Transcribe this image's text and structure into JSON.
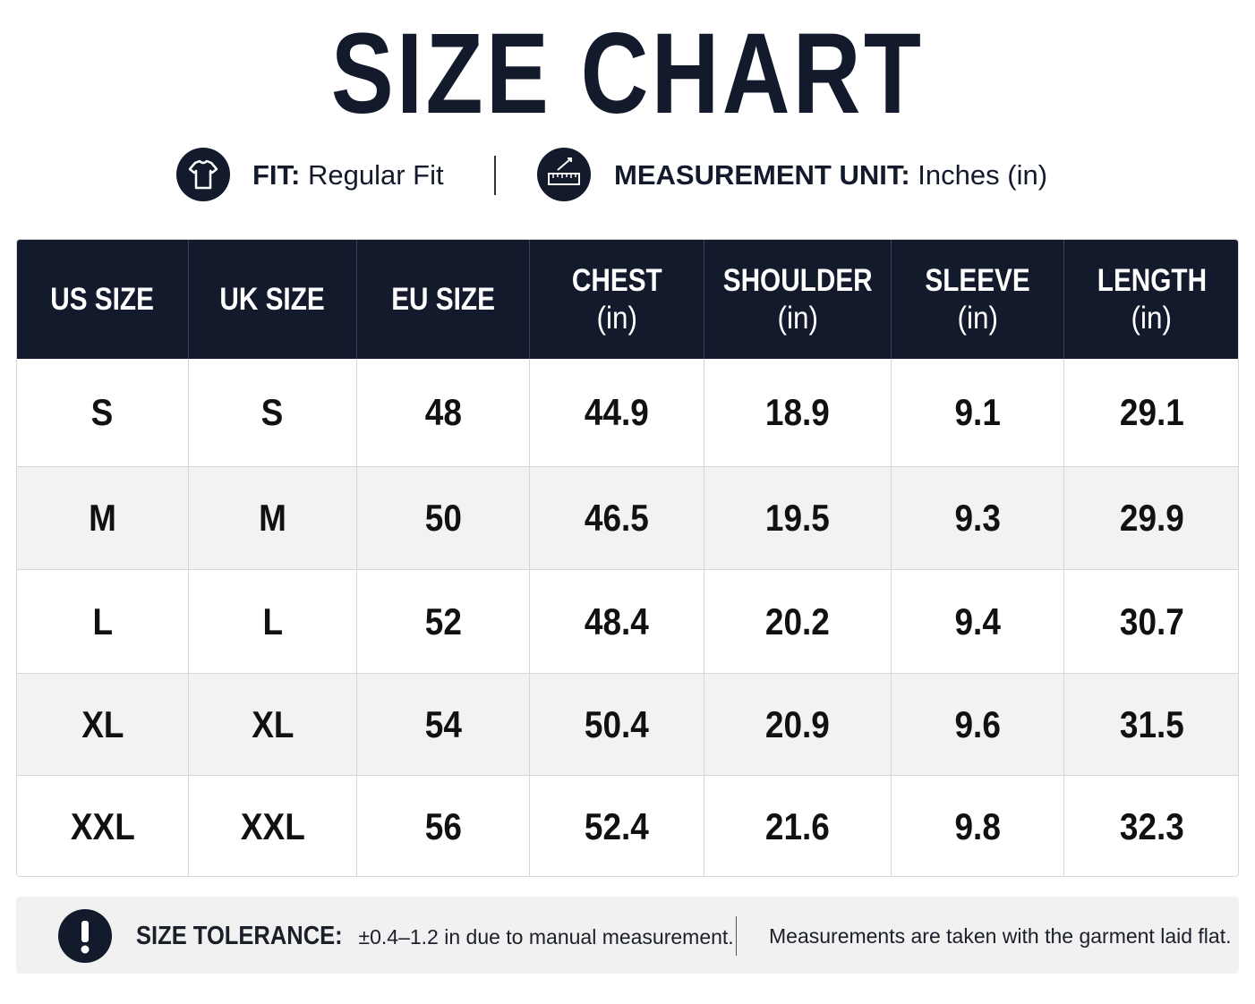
{
  "header": {
    "title": "SIZE CHART",
    "fit_label": "FIT:",
    "fit_value": "Regular Fit",
    "unit_label": "MEASUREMENT UNIT:",
    "unit_value": "Inches (in)"
  },
  "table": {
    "headers": [
      [
        "US SIZE"
      ],
      [
        "UK SIZE"
      ],
      [
        "EU SIZE"
      ],
      [
        "CHEST",
        "(in)"
      ],
      [
        "SHOULDER",
        "(in)"
      ],
      [
        "SLEEVE",
        "(in)"
      ],
      [
        "LENGTH",
        "(in)"
      ]
    ],
    "rows": [
      [
        "S",
        "S",
        48,
        44.9,
        18.9,
        9.1,
        29.1
      ],
      [
        "M",
        "M",
        50,
        46.5,
        19.5,
        9.3,
        29.9
      ],
      [
        "L",
        "L",
        52,
        48.4,
        20.2,
        9.4,
        30.7
      ],
      [
        "XL",
        "XL",
        54,
        50.4,
        20.9,
        9.6,
        31.5
      ],
      [
        "XXL",
        "XXL",
        56,
        52.4,
        21.6,
        9.8,
        32.3
      ]
    ]
  },
  "footer": {
    "tolerance_label": "SIZE TOLERANCE:",
    "tolerance_text": "±0.4–1.2 in due to manual measurement.",
    "note": "Measurements are taken with the garment laid flat."
  }
}
